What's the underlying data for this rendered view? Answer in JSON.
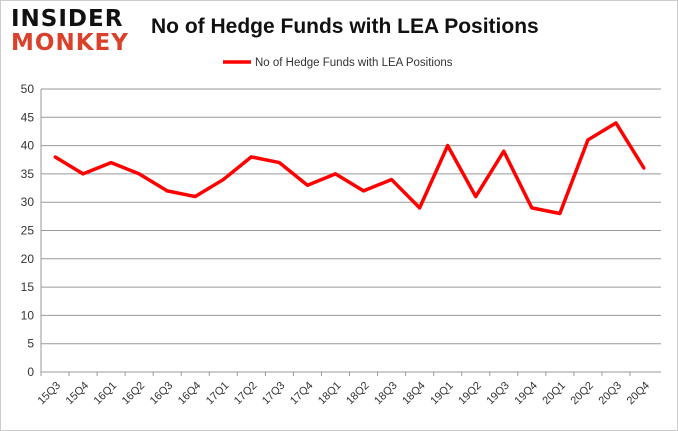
{
  "logo": {
    "line1": "INSIDER",
    "line2": "MONKEY"
  },
  "chart_data": {
    "type": "line",
    "title": "No of Hedge Funds with LEA Positions",
    "categories": [
      "15Q3",
      "15Q4",
      "16Q1",
      "16Q2",
      "16Q3",
      "16Q4",
      "17Q1",
      "17Q2",
      "17Q3",
      "17Q4",
      "18Q1",
      "18Q2",
      "18Q3",
      "18Q4",
      "19Q1",
      "19Q2",
      "19Q3",
      "19Q4",
      "20Q1",
      "20Q2",
      "20Q3",
      "20Q4"
    ],
    "series": [
      {
        "name": "No of Hedge Funds with LEA Positions",
        "color": "#ff0000",
        "values": [
          38,
          35,
          37,
          35,
          32,
          31,
          34,
          38,
          37,
          33,
          35,
          32,
          34,
          29,
          40,
          31,
          39,
          29,
          28,
          41,
          44,
          36
        ]
      }
    ],
    "ylim": [
      0,
      50
    ],
    "yticks": [
      0,
      5,
      10,
      15,
      20,
      25,
      30,
      35,
      40,
      45,
      50
    ],
    "grid": true,
    "legend": "top-center"
  }
}
